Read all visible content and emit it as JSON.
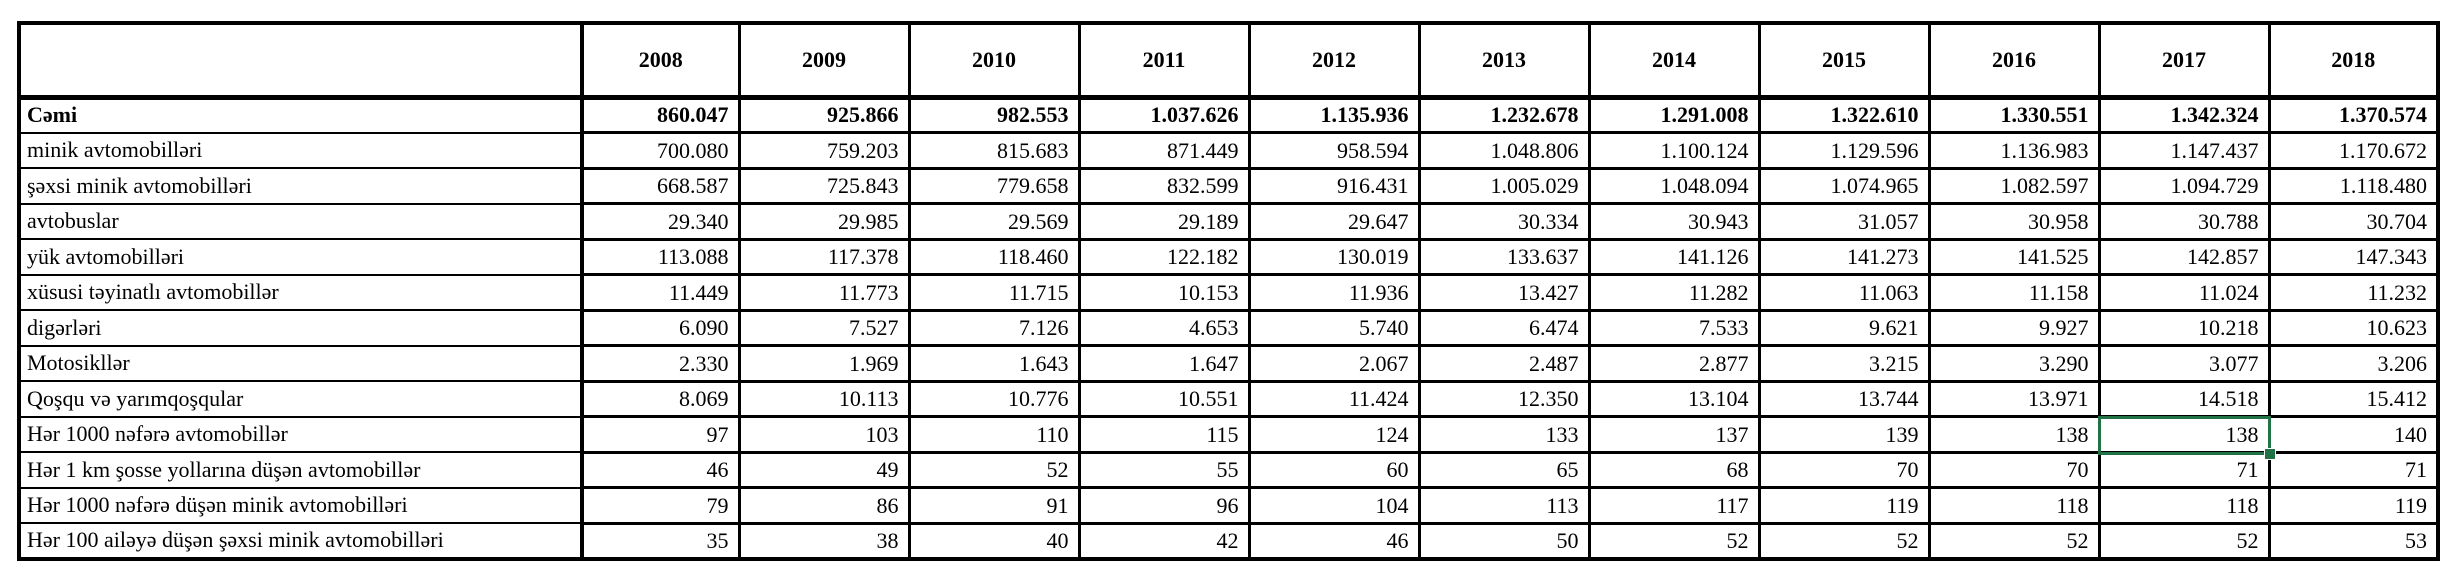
{
  "table": {
    "corner_label": "",
    "years": [
      "2008",
      "2009",
      "2010",
      "2011",
      "2012",
      "2013",
      "2014",
      "2015",
      "2016",
      "2017",
      "2018"
    ],
    "rows": [
      {
        "label": "Cəmi",
        "bold": true,
        "values": [
          "860.047",
          "925.866",
          "982.553",
          "1.037.626",
          "1.135.936",
          "1.232.678",
          "1.291.008",
          "1.322.610",
          "1.330.551",
          "1.342.324",
          "1.370.574"
        ]
      },
      {
        "label": "minik avtomobilləri",
        "values": [
          "700.080",
          "759.203",
          "815.683",
          "871.449",
          "958.594",
          "1.048.806",
          "1.100.124",
          "1.129.596",
          "1.136.983",
          "1.147.437",
          "1.170.672"
        ]
      },
      {
        "label": "şəxsi minik avtomobilləri",
        "values": [
          "668.587",
          "725.843",
          "779.658",
          "832.599",
          "916.431",
          "1.005.029",
          "1.048.094",
          "1.074.965",
          "1.082.597",
          "1.094.729",
          "1.118.480"
        ]
      },
      {
        "label": "avtobuslar",
        "values": [
          "29.340",
          "29.985",
          "29.569",
          "29.189",
          "29.647",
          "30.334",
          "30.943",
          "31.057",
          "30.958",
          "30.788",
          "30.704"
        ]
      },
      {
        "label": "yük avtomobilləri",
        "values": [
          "113.088",
          "117.378",
          "118.460",
          "122.182",
          "130.019",
          "133.637",
          "141.126",
          "141.273",
          "141.525",
          "142.857",
          "147.343"
        ]
      },
      {
        "label": "xüsusi təyinatlı avtomobillər",
        "values": [
          "11.449",
          "11.773",
          "11.715",
          "10.153",
          "11.936",
          "13.427",
          "11.282",
          "11.063",
          "11.158",
          "11.024",
          "11.232"
        ]
      },
      {
        "label": "digərləri",
        "values": [
          "6.090",
          "7.527",
          "7.126",
          "4.653",
          "5.740",
          "6.474",
          "7.533",
          "9.621",
          "9.927",
          "10.218",
          "10.623"
        ]
      },
      {
        "label": "Motosikllər",
        "values": [
          "2.330",
          "1.969",
          "1.643",
          "1.647",
          "2.067",
          "2.487",
          "2.877",
          "3.215",
          "3.290",
          "3.077",
          "3.206"
        ]
      },
      {
        "label": "Qoşqu və yarımqoşqular",
        "values": [
          "8.069",
          "10.113",
          "10.776",
          "10.551",
          "11.424",
          "12.350",
          "13.104",
          "13.744",
          "13.971",
          "14.518",
          "15.412"
        ]
      },
      {
        "label": "Hər 1000 nəfərə avtomobillər",
        "values": [
          "97",
          "103",
          "110",
          "115",
          "124",
          "133",
          "137",
          "139",
          "138",
          "138",
          "140"
        ]
      },
      {
        "label": "Hər 1 km şosse yollarına düşən avtomobillər",
        "values": [
          "46",
          "49",
          "52",
          "55",
          "60",
          "65",
          "68",
          "70",
          "70",
          "71",
          "71"
        ]
      },
      {
        "label": "Hər 1000 nəfərə düşən minik avtomobilləri",
        "values": [
          "79",
          "86",
          "91",
          "96",
          "104",
          "113",
          "117",
          "119",
          "118",
          "118",
          "119"
        ]
      },
      {
        "label": "Hər 100 ailəyə düşən şəxsi minik avtomobilləri",
        "values": [
          "35",
          "38",
          "40",
          "42",
          "46",
          "50",
          "52",
          "52",
          "52",
          "52",
          "53"
        ]
      }
    ],
    "selection": {
      "row_label": "Hər 1000 nəfərə avtomobillər",
      "year": "2017",
      "value": "138",
      "row_index": 9,
      "col_index": 9,
      "border_color": "#217346"
    }
  }
}
